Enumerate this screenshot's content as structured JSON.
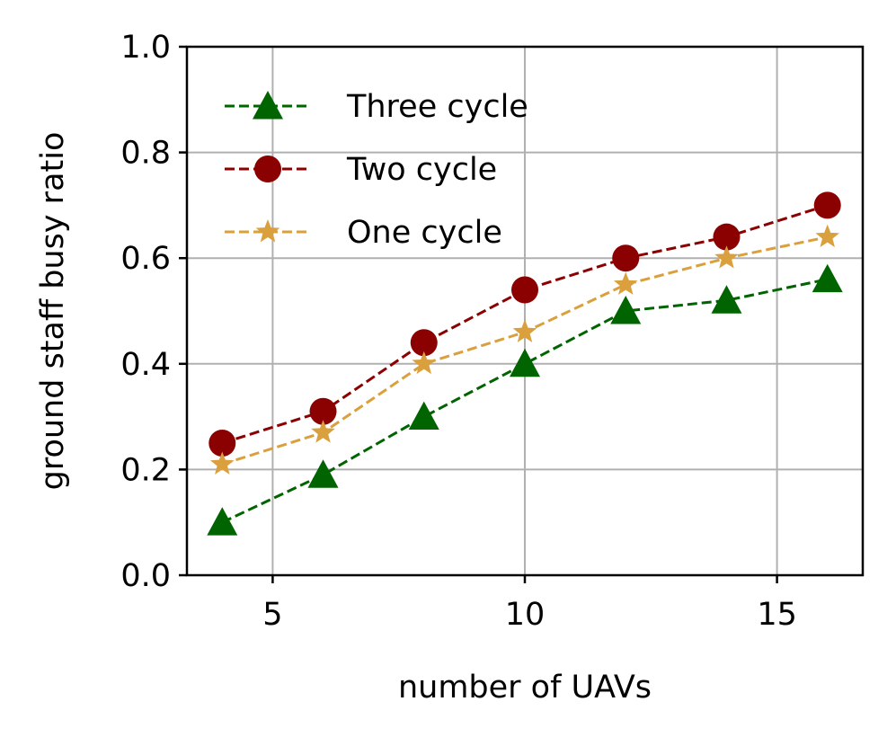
{
  "chart_data": {
    "type": "line",
    "xlabel": "number of UAVs",
    "ylabel": "ground staff busy ratio",
    "xlim": [
      3.3,
      16.7
    ],
    "ylim": [
      0.0,
      1.0
    ],
    "xticks": [
      5,
      10,
      15
    ],
    "xtick_labels": [
      "5",
      "10",
      "15"
    ],
    "yticks": [
      0.0,
      0.2,
      0.4,
      0.6,
      0.8,
      1.0
    ],
    "ytick_labels": [
      "0.0",
      "0.2",
      "0.4",
      "0.6",
      "0.8",
      "1.0"
    ],
    "grid": true,
    "legend_position": "upper-left",
    "x": [
      4,
      6,
      8,
      10,
      12,
      14,
      16
    ],
    "series": [
      {
        "name": "Three cycle",
        "color": "#006400",
        "marker": "triangle",
        "linestyle": "dashed",
        "values": [
          0.1,
          0.19,
          0.3,
          0.4,
          0.5,
          0.52,
          0.56
        ]
      },
      {
        "name": "Two cycle",
        "color": "#8b0000",
        "marker": "circle",
        "linestyle": "dashed",
        "values": [
          0.25,
          0.31,
          0.44,
          0.54,
          0.6,
          0.64,
          0.7
        ]
      },
      {
        "name": "One cycle",
        "color": "#daa03d",
        "marker": "star",
        "linestyle": "dashed",
        "values": [
          0.21,
          0.27,
          0.4,
          0.46,
          0.55,
          0.6,
          0.64
        ]
      }
    ]
  }
}
